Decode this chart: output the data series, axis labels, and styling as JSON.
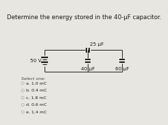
{
  "title": "Determine the energy stored in the 40-μF capacitor.",
  "voltage_label": "50 V",
  "cap1_label": "25 μF",
  "cap2_label": "40 μF",
  "cap3_label": "60 μF",
  "options_header": "Select one:",
  "options": [
    "a. 1.0 mC",
    "b. 0.4 mC",
    "c. 1.8 mC",
    "d. 0.6 mC",
    "e. 1.4 mC"
  ],
  "bg_color": "#e8e6e0",
  "text_color": "#1a1a1a",
  "line_color": "#1a1a1a",
  "title_fontsize": 6.2,
  "label_fontsize": 5.2,
  "options_fontsize": 4.5
}
